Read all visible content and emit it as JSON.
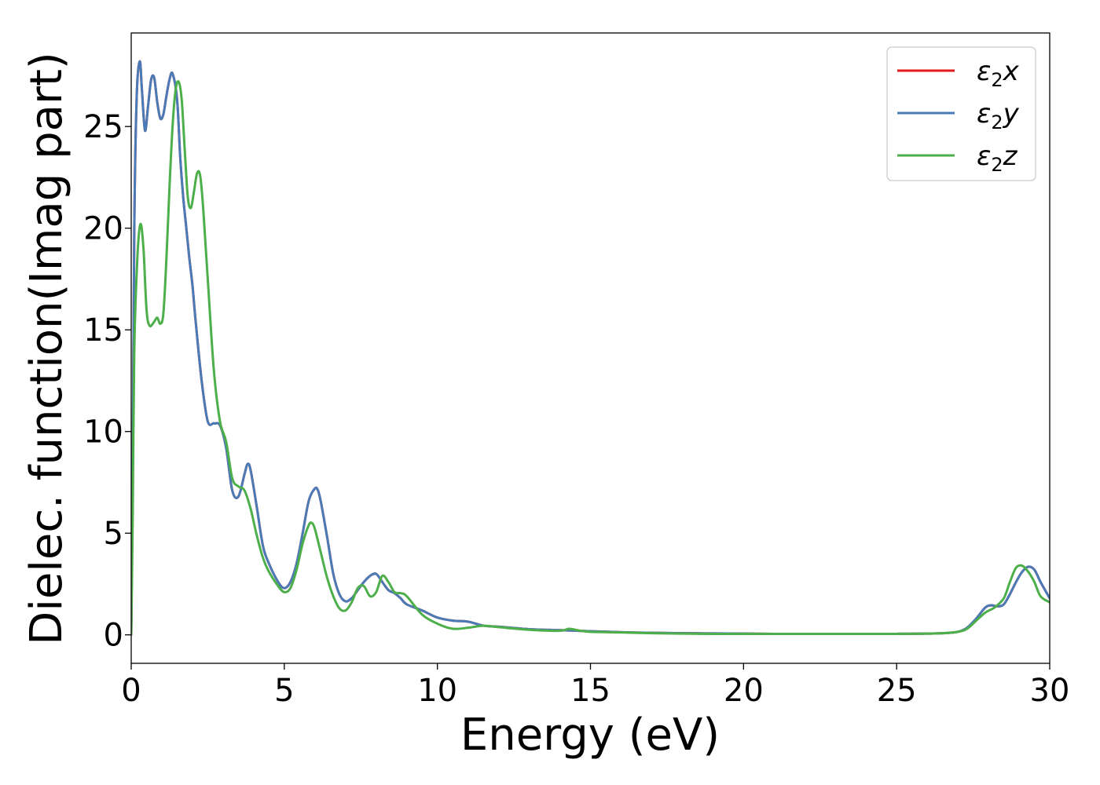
{
  "chart_data": {
    "type": "line",
    "xlabel": "Energy (eV)",
    "ylabel": "Dielec. function(Imag part)",
    "xlim": [
      0,
      30
    ],
    "ylim": [
      -1.4,
      29.6
    ],
    "xticks": [
      0,
      5,
      10,
      15,
      20,
      25,
      30
    ],
    "yticks": [
      0,
      5,
      10,
      15,
      20,
      25
    ],
    "grid": false,
    "legend_position": "top-right",
    "series": [
      {
        "name": "ε2x",
        "color": "#e41a1c",
        "x": [
          0,
          0.05,
          0.1,
          0.18,
          0.28,
          0.35,
          0.45,
          0.55,
          0.65,
          0.75,
          0.85,
          0.95,
          1.05,
          1.15,
          1.25,
          1.35,
          1.5,
          1.6,
          1.7,
          1.8,
          1.9,
          2.0,
          2.1,
          2.3,
          2.5,
          2.7,
          2.9,
          3.1,
          3.3,
          3.5,
          3.7,
          3.8,
          3.9,
          4.1,
          4.3,
          4.5,
          4.8,
          5.0,
          5.2,
          5.4,
          5.6,
          5.8,
          6.0,
          6.1,
          6.2,
          6.4,
          6.6,
          6.8,
          7.0,
          7.2,
          7.4,
          7.6,
          7.8,
          8.0,
          8.2,
          8.4,
          8.6,
          8.8,
          9.0,
          9.5,
          10.0,
          10.5,
          11.0,
          11.5,
          12.0,
          13.0,
          14.0,
          15.0,
          16.0,
          17.0,
          18.0,
          19.0,
          20.0,
          21.0,
          22.0,
          23.0,
          24.0,
          25.0,
          26.0,
          26.5,
          27.0,
          27.3,
          27.6,
          27.9,
          28.1,
          28.3,
          28.5,
          28.7,
          28.9,
          29.1,
          29.3,
          29.5,
          29.7,
          30.0
        ],
        "y": [
          0,
          8,
          20,
          26.5,
          28.2,
          26.8,
          24.8,
          26.0,
          27.3,
          27.4,
          26.2,
          25.4,
          25.6,
          26.5,
          27.3,
          27.6,
          26.3,
          23.5,
          21.5,
          20.0,
          18.5,
          17.2,
          15.5,
          12.5,
          10.5,
          10.4,
          10.3,
          9.2,
          7.1,
          6.8,
          7.9,
          8.4,
          8.1,
          6.3,
          4.4,
          3.5,
          2.6,
          2.3,
          2.6,
          3.5,
          5.0,
          6.6,
          7.2,
          7.1,
          6.5,
          4.8,
          3.0,
          2.0,
          1.65,
          1.8,
          2.2,
          2.6,
          2.9,
          3.0,
          2.6,
          2.2,
          2.05,
          1.8,
          1.5,
          1.2,
          0.85,
          0.7,
          0.65,
          0.45,
          0.4,
          0.28,
          0.23,
          0.18,
          0.13,
          0.1,
          0.08,
          0.07,
          0.06,
          0.05,
          0.05,
          0.05,
          0.05,
          0.05,
          0.06,
          0.08,
          0.15,
          0.35,
          0.8,
          1.35,
          1.45,
          1.4,
          1.5,
          2.0,
          2.6,
          3.1,
          3.35,
          3.2,
          2.6,
          1.8
        ]
      },
      {
        "name": "ε2y",
        "color": "#4a7bb7",
        "x": [
          0,
          0.05,
          0.1,
          0.18,
          0.28,
          0.35,
          0.45,
          0.55,
          0.65,
          0.75,
          0.85,
          0.95,
          1.05,
          1.15,
          1.25,
          1.35,
          1.5,
          1.6,
          1.7,
          1.8,
          1.9,
          2.0,
          2.1,
          2.3,
          2.5,
          2.7,
          2.9,
          3.1,
          3.3,
          3.5,
          3.7,
          3.8,
          3.9,
          4.1,
          4.3,
          4.5,
          4.8,
          5.0,
          5.2,
          5.4,
          5.6,
          5.8,
          6.0,
          6.1,
          6.2,
          6.4,
          6.6,
          6.8,
          7.0,
          7.2,
          7.4,
          7.6,
          7.8,
          8.0,
          8.2,
          8.4,
          8.6,
          8.8,
          9.0,
          9.5,
          10.0,
          10.5,
          11.0,
          11.5,
          12.0,
          13.0,
          14.0,
          15.0,
          16.0,
          17.0,
          18.0,
          19.0,
          20.0,
          21.0,
          22.0,
          23.0,
          24.0,
          25.0,
          26.0,
          26.5,
          27.0,
          27.3,
          27.6,
          27.9,
          28.1,
          28.3,
          28.5,
          28.7,
          28.9,
          29.1,
          29.3,
          29.5,
          29.7,
          30.0
        ],
        "y": [
          0,
          8,
          20,
          26.5,
          28.2,
          26.8,
          24.8,
          26.0,
          27.3,
          27.4,
          26.2,
          25.4,
          25.6,
          26.5,
          27.3,
          27.6,
          26.3,
          23.5,
          21.5,
          20.0,
          18.5,
          17.2,
          15.5,
          12.5,
          10.5,
          10.4,
          10.3,
          9.2,
          7.1,
          6.8,
          7.9,
          8.4,
          8.1,
          6.3,
          4.4,
          3.5,
          2.6,
          2.3,
          2.6,
          3.5,
          5.0,
          6.6,
          7.2,
          7.1,
          6.5,
          4.8,
          3.0,
          2.0,
          1.65,
          1.8,
          2.2,
          2.6,
          2.9,
          3.0,
          2.6,
          2.2,
          2.05,
          1.8,
          1.5,
          1.2,
          0.85,
          0.7,
          0.65,
          0.45,
          0.4,
          0.28,
          0.23,
          0.18,
          0.13,
          0.1,
          0.08,
          0.07,
          0.06,
          0.05,
          0.05,
          0.05,
          0.05,
          0.05,
          0.06,
          0.08,
          0.15,
          0.35,
          0.8,
          1.35,
          1.45,
          1.4,
          1.5,
          2.0,
          2.6,
          3.1,
          3.35,
          3.2,
          2.6,
          1.8
        ]
      },
      {
        "name": "ε2z",
        "color": "#4daf4a",
        "x": [
          0,
          0.05,
          0.1,
          0.2,
          0.3,
          0.4,
          0.5,
          0.6,
          0.75,
          0.85,
          0.95,
          1.05,
          1.15,
          1.25,
          1.35,
          1.45,
          1.55,
          1.65,
          1.75,
          1.85,
          1.95,
          2.05,
          2.15,
          2.25,
          2.35,
          2.5,
          2.7,
          2.9,
          3.1,
          3.3,
          3.5,
          3.7,
          3.9,
          4.1,
          4.3,
          4.5,
          4.8,
          5.0,
          5.2,
          5.4,
          5.6,
          5.8,
          5.9,
          6.0,
          6.2,
          6.4,
          6.6,
          6.8,
          7.0,
          7.2,
          7.4,
          7.6,
          7.8,
          8.0,
          8.2,
          8.4,
          8.6,
          8.8,
          9.0,
          9.5,
          10.0,
          10.5,
          11.0,
          11.5,
          12.0,
          13.0,
          14.0,
          14.3,
          14.6,
          15.0,
          16.0,
          17.0,
          18.0,
          19.0,
          20.0,
          21.0,
          22.0,
          23.0,
          24.0,
          25.0,
          26.0,
          26.5,
          27.0,
          27.3,
          27.6,
          27.9,
          28.2,
          28.5,
          28.7,
          28.9,
          29.1,
          29.3,
          29.5,
          29.7,
          30.0
        ],
        "y": [
          0,
          6,
          14,
          18.5,
          20.2,
          19.0,
          16.0,
          15.2,
          15.4,
          15.6,
          15.3,
          15.8,
          18.5,
          22.0,
          25.0,
          26.8,
          27.2,
          26.3,
          23.8,
          21.5,
          21.0,
          21.8,
          22.7,
          22.6,
          21.0,
          17.5,
          13.0,
          10.5,
          9.5,
          7.7,
          7.3,
          7.1,
          6.2,
          4.9,
          3.8,
          3.1,
          2.4,
          2.1,
          2.3,
          3.2,
          4.5,
          5.4,
          5.5,
          5.2,
          4.0,
          2.8,
          1.9,
          1.3,
          1.2,
          1.6,
          2.3,
          2.4,
          1.9,
          2.1,
          2.9,
          2.6,
          2.1,
          2.05,
          1.9,
          1.0,
          0.55,
          0.3,
          0.35,
          0.45,
          0.38,
          0.25,
          0.2,
          0.3,
          0.22,
          0.15,
          0.12,
          0.08,
          0.06,
          0.05,
          0.05,
          0.05,
          0.05,
          0.05,
          0.05,
          0.05,
          0.06,
          0.08,
          0.15,
          0.3,
          0.7,
          1.1,
          1.35,
          1.8,
          2.6,
          3.3,
          3.4,
          3.1,
          2.6,
          1.9,
          1.6
        ]
      }
    ]
  }
}
